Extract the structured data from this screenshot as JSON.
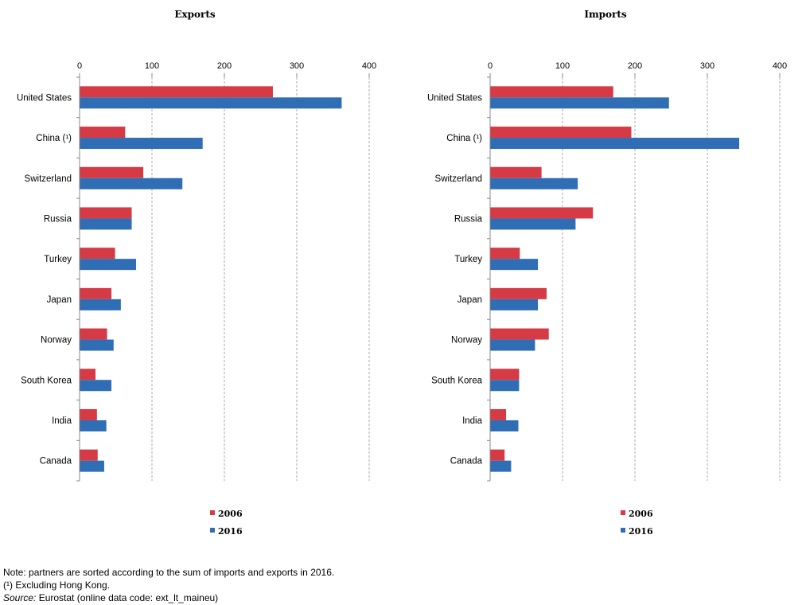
{
  "chart_data": [
    {
      "type": "bar",
      "orientation": "horizontal",
      "title": "Exports",
      "categories": [
        "United States",
        "China (¹)",
        "Switzerland",
        "Russia",
        "Turkey",
        "Japan",
        "Norway",
        "South Korea",
        "India",
        "Canada"
      ],
      "series": [
        {
          "name": "2006",
          "values": [
            267,
            63,
            88,
            72,
            49,
            44,
            38,
            22,
            24,
            25
          ]
        },
        {
          "name": "2016",
          "values": [
            362,
            170,
            142,
            72,
            78,
            57,
            47,
            44,
            37,
            34
          ]
        }
      ],
      "xlim": [
        0,
        400
      ],
      "xticks": [
        0,
        100,
        200,
        300,
        400
      ],
      "grid": "vertical dashed",
      "legend_position": "bottom"
    },
    {
      "type": "bar",
      "orientation": "horizontal",
      "title": "Imports",
      "categories": [
        "United States",
        "China (¹)",
        "Switzerland",
        "Russia",
        "Turkey",
        "Japan",
        "Norway",
        "South Korea",
        "India",
        "Canada"
      ],
      "series": [
        {
          "name": "2006",
          "values": [
            170,
            195,
            71,
            142,
            41,
            78,
            81,
            40,
            22,
            20
          ]
        },
        {
          "name": "2016",
          "values": [
            247,
            344,
            121,
            118,
            66,
            66,
            62,
            40,
            39,
            29
          ]
        }
      ],
      "xlim": [
        0,
        400
      ],
      "xticks": [
        0,
        100,
        200,
        300,
        400
      ],
      "grid": "vertical dashed",
      "legend_position": "bottom"
    }
  ],
  "colors": {
    "2006": "#d63a45",
    "2016": "#2f6db5"
  },
  "notes": {
    "line1": "Note: partners are sorted according to the sum of imports and exports in 2016.",
    "line2": "(¹) Excluding Hong Kong.",
    "source_label": "Source:",
    "source_text": " Eurostat (online data code: ext_lt_maineu)"
  }
}
